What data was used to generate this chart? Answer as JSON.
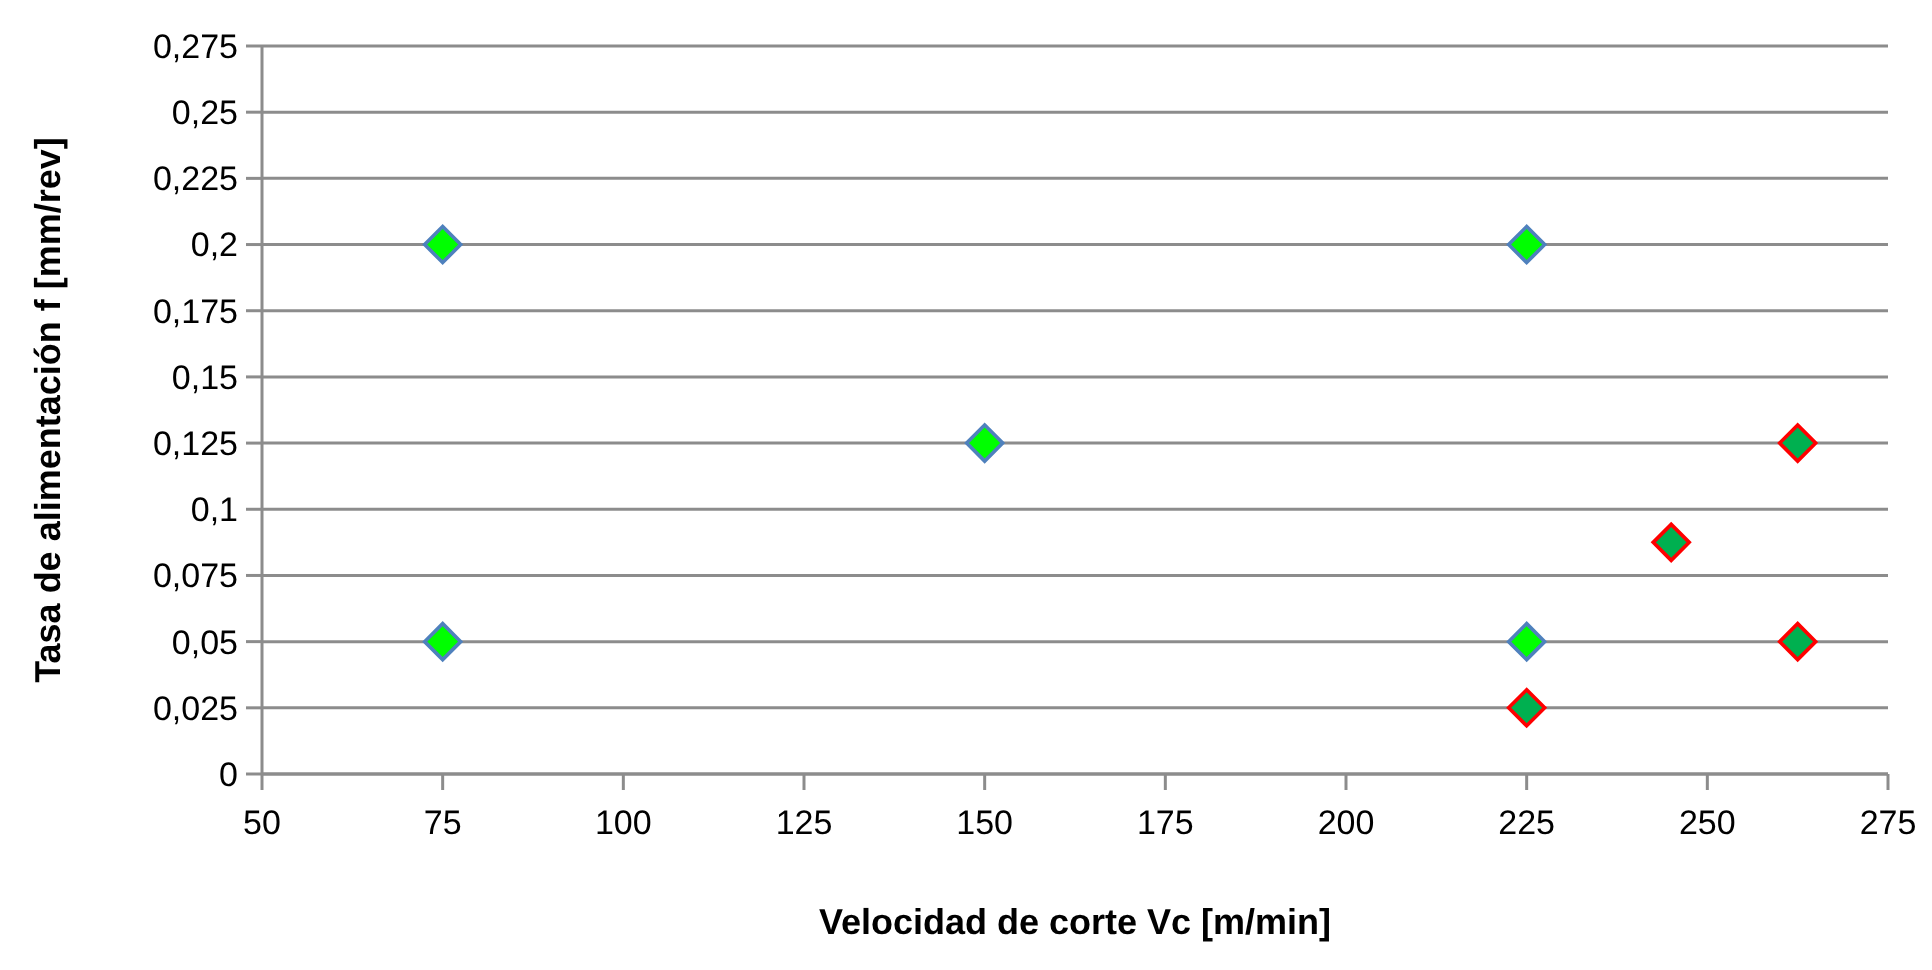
{
  "chart_data": {
    "type": "scatter",
    "xlabel": "Velocidad de corte Vc [m/min]",
    "ylabel": "Tasa de alimentación f [mm/rev]",
    "xlim": [
      50,
      275
    ],
    "xticks": [
      50,
      75,
      100,
      125,
      150,
      175,
      200,
      225,
      250,
      275
    ],
    "ylim": [
      0,
      0.275
    ],
    "yticks": [
      {
        "value": 0,
        "label": "0"
      },
      {
        "value": 0.025,
        "label": "0,025"
      },
      {
        "value": 0.05,
        "label": "0,05"
      },
      {
        "value": 0.075,
        "label": "0,075"
      },
      {
        "value": 0.1,
        "label": "0,1"
      },
      {
        "value": 0.125,
        "label": "0,125"
      },
      {
        "value": 0.15,
        "label": "0,15"
      },
      {
        "value": 0.175,
        "label": "0,175"
      },
      {
        "value": 0.2,
        "label": "0,2"
      },
      {
        "value": 0.225,
        "label": "0,225"
      },
      {
        "value": 0.25,
        "label": "0,25"
      },
      {
        "value": 0.275,
        "label": "0,275"
      }
    ],
    "grid": "y",
    "marker": "diamond",
    "series": [
      {
        "color": "#00ff00",
        "x": [
          75,
          75,
          150,
          225,
          225
        ],
        "values": [
          0.2,
          0.05,
          0.125,
          0.2,
          0.05
        ]
      },
      {
        "color": "#00b050",
        "x": [
          225,
          245,
          262.5,
          262.5
        ],
        "values": [
          0.025,
          0.0875,
          0.125,
          0.05
        ]
      }
    ]
  }
}
